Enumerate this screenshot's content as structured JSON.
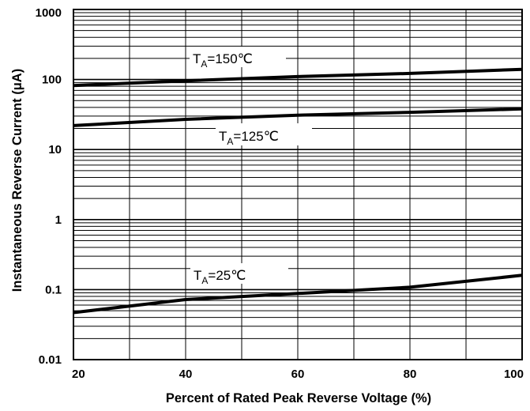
{
  "chart_data": {
    "type": "line",
    "xlabel": "Percent of Rated Peak Reverse Voltage (%)",
    "ylabel": "Instantaneous Reverse Current (μA)",
    "xlim": [
      20,
      100
    ],
    "ylim": [
      0.01,
      1000
    ],
    "yscale": "log",
    "grid": true,
    "x_ticks": [
      {
        "value": 20,
        "label": "20"
      },
      {
        "value": 40,
        "label": "40"
      },
      {
        "value": 60,
        "label": "60"
      },
      {
        "value": 80,
        "label": "80"
      },
      {
        "value": 100,
        "label": "100"
      }
    ],
    "y_ticks": [
      {
        "value": 0.01,
        "label": "0.01"
      },
      {
        "value": 0.1,
        "label": "0.1"
      },
      {
        "value": 1,
        "label": "1"
      },
      {
        "value": 10,
        "label": "10"
      },
      {
        "value": 100,
        "label": "100"
      },
      {
        "value": 1000,
        "label": "1000"
      }
    ],
    "series": [
      {
        "name": "TA=150℃",
        "label_main": "T",
        "label_sub": "A",
        "label_rest": "=150℃",
        "x": [
          20,
          40,
          60,
          80,
          100
        ],
        "y": [
          82,
          96,
          110,
          122,
          140
        ]
      },
      {
        "name": "TA=125℃",
        "label_main": "T",
        "label_sub": "A",
        "label_rest": "=125℃",
        "x": [
          20,
          40,
          60,
          80,
          100
        ],
        "y": [
          22,
          27,
          31,
          34,
          38
        ]
      },
      {
        "name": "TA=25℃",
        "label_main": "T",
        "label_sub": "A",
        "label_rest": "=25℃",
        "x": [
          20,
          40,
          60,
          80,
          100
        ],
        "y": [
          0.047,
          0.072,
          0.088,
          0.108,
          0.16
        ]
      }
    ]
  }
}
